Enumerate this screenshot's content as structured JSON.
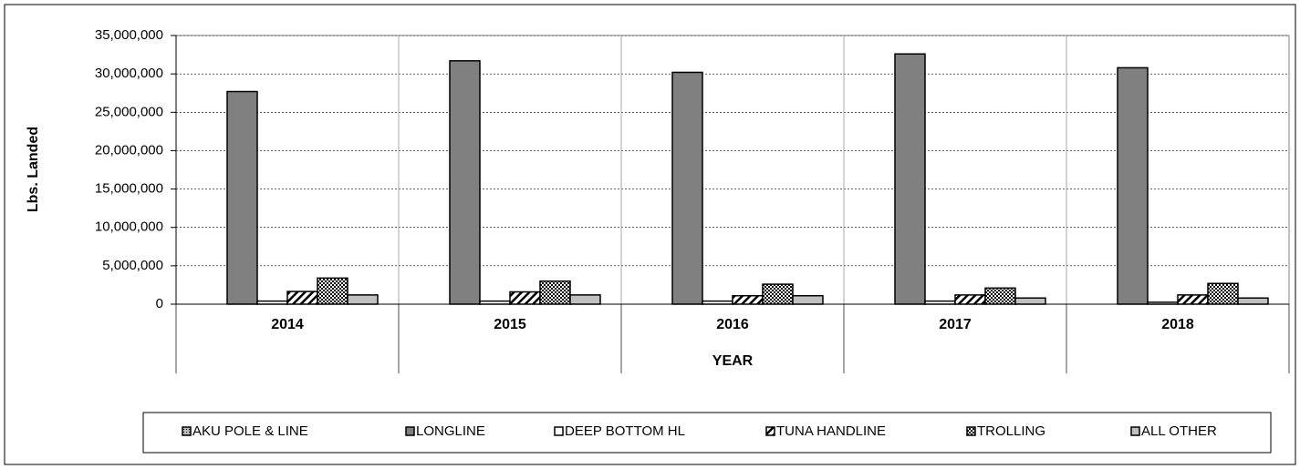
{
  "chart_data": {
    "type": "bar",
    "x_label": "YEAR",
    "y_label": "Lbs. Landed",
    "categories": [
      "2014",
      "2015",
      "2016",
      "2017",
      "2018"
    ],
    "series": [
      {
        "name": "AKU POLE & LINE",
        "color": "#c0c0c0",
        "pattern": "dots",
        "values": [
          0,
          0,
          0,
          0,
          0
        ]
      },
      {
        "name": "LONGLINE",
        "color": "#808080",
        "values": [
          27700000,
          31700000,
          30200000,
          32600000,
          30800000
        ]
      },
      {
        "name": "DEEP BOTTOM HL",
        "color": "#ffffff",
        "values": [
          400000,
          400000,
          400000,
          400000,
          250000
        ]
      },
      {
        "name": "TUNA HANDLINE",
        "color": "#ffffff",
        "pattern": "hatch",
        "values": [
          1650000,
          1600000,
          1100000,
          1200000,
          1200000
        ]
      },
      {
        "name": "TROLLING",
        "color": "#ffffff",
        "pattern": "checker",
        "values": [
          3400000,
          3000000,
          2600000,
          2100000,
          2700000
        ]
      },
      {
        "name": "ALL OTHER",
        "color": "#c0c0c0",
        "values": [
          1200000,
          1200000,
          1100000,
          800000,
          800000
        ]
      }
    ],
    "ylim": [
      0,
      35000000
    ],
    "yticks": [
      0,
      {
        "value": 5000000,
        "label": "5,000,000"
      },
      {
        "value": 10000000,
        "label": "10,000,000"
      },
      {
        "value": 15000000,
        "label": "15,000,000"
      },
      {
        "value": 20000000,
        "label": "20,000,000"
      },
      {
        "value": 25000000,
        "label": "25,000,000"
      },
      {
        "value": 30000000,
        "label": "30,000,000"
      },
      {
        "value": 35000000,
        "label": "35,000,000"
      }
    ],
    "grid": true,
    "legend": "bottom"
  }
}
